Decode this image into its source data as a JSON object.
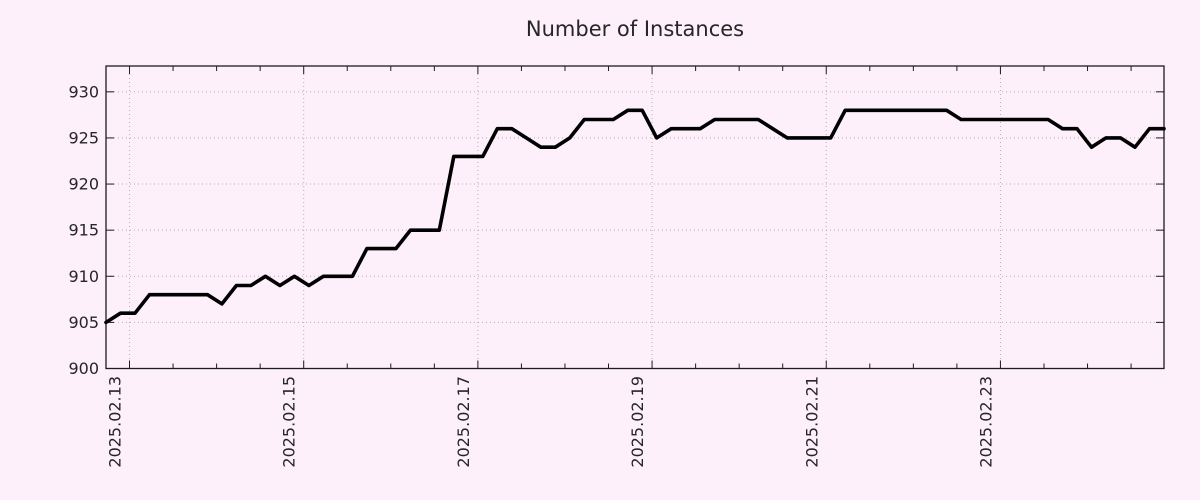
{
  "background_color": "#fdf0fb",
  "chart_data": {
    "type": "line",
    "title": "Number of Instances",
    "xlabel": "",
    "ylabel": "",
    "legend": "none",
    "grid": "dotted",
    "axis_color": "#1c1c1c",
    "grid_color": "#b5adb5",
    "text_color": "#262626",
    "y_ticks": [
      900,
      905,
      910,
      915,
      920,
      925,
      930
    ],
    "ylim": [
      900,
      932.8
    ],
    "x_tick_labels": [
      "2025.02.13",
      "2025.02.15",
      "2025.02.17",
      "2025.02.19",
      "2025.02.21",
      "2025.02.23"
    ],
    "x_major_tick_days": [
      0,
      2,
      4,
      6,
      8,
      10
    ],
    "x_minor_tick_step_days": 0.5,
    "x_range_days": [
      -0.27,
      11.878
    ],
    "sample_interval_hours": 4,
    "series": [
      {
        "name": "instances",
        "color": "#000000",
        "values": [
          905,
          906,
          906,
          908,
          908,
          908,
          908,
          908,
          907,
          909,
          909,
          910,
          909,
          910,
          909,
          910,
          910,
          910,
          913,
          913,
          913,
          915,
          915,
          915,
          923,
          923,
          923,
          926,
          926,
          925,
          924,
          924,
          925,
          927,
          927,
          927,
          928,
          928,
          925,
          926,
          926,
          926,
          927,
          927,
          927,
          927,
          926,
          925,
          925,
          925,
          925,
          928,
          928,
          928,
          928,
          928,
          928,
          928,
          928,
          927,
          927,
          927,
          927,
          927,
          927,
          927,
          926,
          926,
          924,
          925,
          925,
          924,
          926,
          926
        ]
      }
    ]
  }
}
